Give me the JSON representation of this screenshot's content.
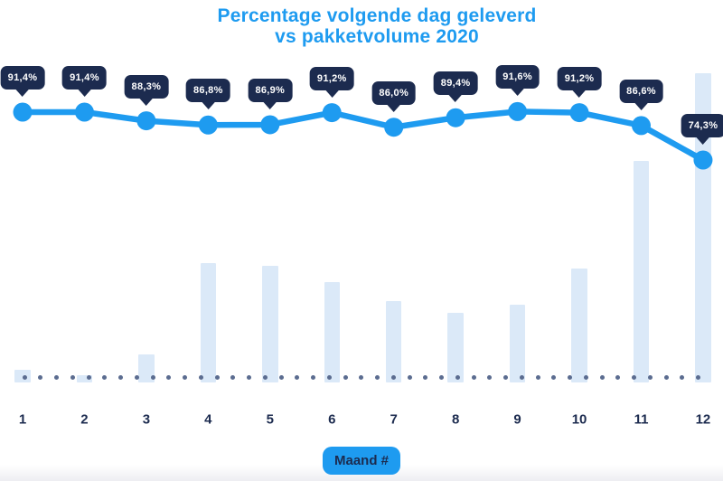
{
  "title": {
    "line1": "Percentage volgende dag geleverd",
    "line2": "vs pakketvolume 2020"
  },
  "x_axis": {
    "label_badge": "Maand #",
    "months": [
      "1",
      "2",
      "3",
      "4",
      "5",
      "6",
      "7",
      "8",
      "9",
      "10",
      "11",
      "12"
    ]
  },
  "chart_data": {
    "type": "combo",
    "title": "Percentage volgende dag geleverd vs pakketvolume 2020",
    "xlabel": "Maand #",
    "categories": [
      "1",
      "2",
      "3",
      "4",
      "5",
      "6",
      "7",
      "8",
      "9",
      "10",
      "11",
      "12"
    ],
    "grid": false,
    "legend": "none",
    "baseline_style": "dotted",
    "series": [
      {
        "name": "Percentage volgende dag geleverd",
        "type": "line",
        "unit": "%",
        "values": [
          91.4,
          91.4,
          88.3,
          86.8,
          86.9,
          91.2,
          86.0,
          89.4,
          91.6,
          91.2,
          86.6,
          74.3
        ],
        "labels": [
          "91,4%",
          "91,4%",
          "88,3%",
          "86,8%",
          "86,9%",
          "91,2%",
          "86,0%",
          "89,4%",
          "91,6%",
          "91,2%",
          "86,6%",
          "74,3%"
        ],
        "ylim_estimate": [
          70,
          95
        ]
      },
      {
        "name": "Pakketvolume 2020",
        "type": "bar",
        "unit": "relative volume, % of max month (no value axis shown)",
        "values": [
          4.1,
          2.3,
          9.1,
          38.6,
          37.7,
          32.5,
          26.3,
          22.5,
          25.1,
          36.8,
          71.6,
          100
        ]
      }
    ]
  },
  "colors": {
    "accent_blue": "#1E9BF0",
    "navy": "#1C2B4F",
    "bar_fill": "#DBE9F8",
    "dot_gray_blue": "#5B6C90",
    "badge_text": "#FFFFFF",
    "background": "#FFFFFF"
  }
}
